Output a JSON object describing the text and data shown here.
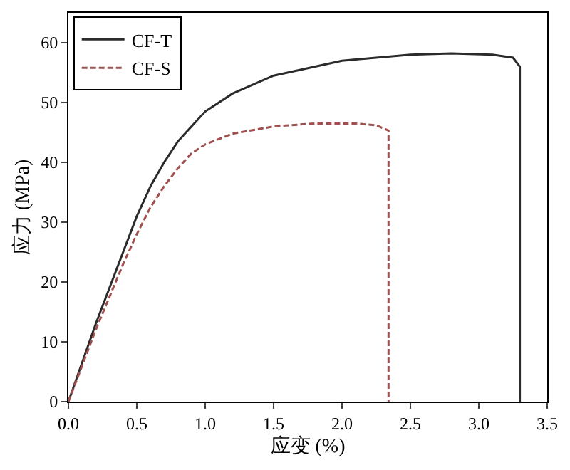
{
  "chart_data": {
    "type": "line",
    "xlabel": "应变 (%)",
    "ylabel": "应力 (MPa)",
    "xlim": [
      0,
      3.5
    ],
    "xticks": [
      {
        "value": 0,
        "label": "0.0"
      },
      0.5,
      {
        "value": 1,
        "label": "1.0"
      },
      1.5,
      {
        "value": 2,
        "label": "2.0"
      },
      2.5,
      {
        "value": 3,
        "label": "3.0"
      },
      3.5
    ],
    "ylim": [
      0,
      65
    ],
    "yticks": [
      0,
      10,
      20,
      30,
      40,
      50,
      60
    ],
    "legend": "top left",
    "marker": "none",
    "series": [
      {
        "name": "CF-T",
        "color": "#2b2b2b",
        "line_style": "solid",
        "x": [
          0,
          0.2,
          0.4,
          0.5,
          0.6,
          0.7,
          0.8,
          1.0,
          1.2,
          1.5,
          2.0,
          2.5,
          2.8,
          3.1,
          3.25,
          3.3,
          3.3
        ],
        "values": [
          0,
          13,
          25,
          31,
          36,
          40,
          43.5,
          48.5,
          51.5,
          54.5,
          57,
          58,
          58.2,
          58,
          57.5,
          56,
          0
        ]
      },
      {
        "name": "CF-S",
        "color": "#a0504f",
        "line_style": "dashed",
        "x": [
          0,
          0.2,
          0.4,
          0.5,
          0.6,
          0.7,
          0.8,
          0.9,
          1.0,
          1.2,
          1.5,
          1.8,
          2.1,
          2.25,
          2.34,
          2.34
        ],
        "values": [
          0,
          12,
          23,
          28,
          32.5,
          36,
          39,
          41.5,
          43,
          44.8,
          46,
          46.5,
          46.5,
          46.2,
          45.3,
          0
        ]
      }
    ]
  }
}
